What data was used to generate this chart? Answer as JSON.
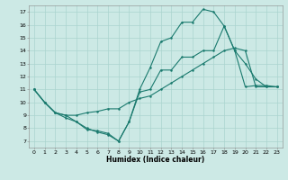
{
  "xlabel": "Humidex (Indice chaleur)",
  "background_color": "#cce9e5",
  "grid_color": "#aad4cf",
  "line_color": "#1a7a6e",
  "xlim": [
    -0.5,
    23.5
  ],
  "ylim": [
    6.5,
    17.5
  ],
  "xticks": [
    0,
    1,
    2,
    3,
    4,
    5,
    6,
    7,
    8,
    9,
    10,
    11,
    12,
    13,
    14,
    15,
    16,
    17,
    18,
    19,
    20,
    21,
    22,
    23
  ],
  "yticks": [
    7,
    8,
    9,
    10,
    11,
    12,
    13,
    14,
    15,
    16,
    17
  ],
  "line1_x": [
    0,
    1,
    2,
    3,
    4,
    5,
    6,
    7,
    8,
    9,
    10,
    11,
    12,
    13,
    14,
    15,
    16,
    17,
    18,
    19,
    20,
    21,
    22,
    23
  ],
  "line1_y": [
    11,
    10,
    9.2,
    8.8,
    8.5,
    8.0,
    7.7,
    7.5,
    7.0,
    8.5,
    11.0,
    12.7,
    14.7,
    15.0,
    16.2,
    16.2,
    17.2,
    17.0,
    15.9,
    14.0,
    13.0,
    11.8,
    11.2,
    11.2
  ],
  "line2_x": [
    0,
    1,
    2,
    3,
    4,
    5,
    6,
    7,
    8,
    9,
    10,
    11,
    12,
    13,
    14,
    15,
    16,
    17,
    18,
    19,
    20,
    21,
    22,
    23
  ],
  "line2_y": [
    11,
    10,
    9.2,
    9.0,
    9.0,
    9.2,
    9.3,
    9.5,
    9.5,
    10.0,
    10.3,
    10.5,
    11.0,
    11.5,
    12.0,
    12.5,
    13.0,
    13.5,
    14.0,
    14.2,
    14.0,
    11.2,
    11.2,
    11.2
  ],
  "line3_x": [
    0,
    1,
    2,
    3,
    4,
    5,
    6,
    7,
    8,
    9,
    10,
    11,
    12,
    13,
    14,
    15,
    16,
    17,
    18,
    19,
    20,
    21,
    22,
    23
  ],
  "line3_y": [
    11,
    10,
    9.2,
    9.0,
    8.5,
    7.9,
    7.8,
    7.6,
    7.0,
    8.5,
    10.8,
    11.0,
    12.5,
    12.5,
    13.5,
    13.5,
    14.0,
    14.0,
    15.9,
    14.0,
    11.2,
    11.3,
    11.3,
    11.2
  ]
}
